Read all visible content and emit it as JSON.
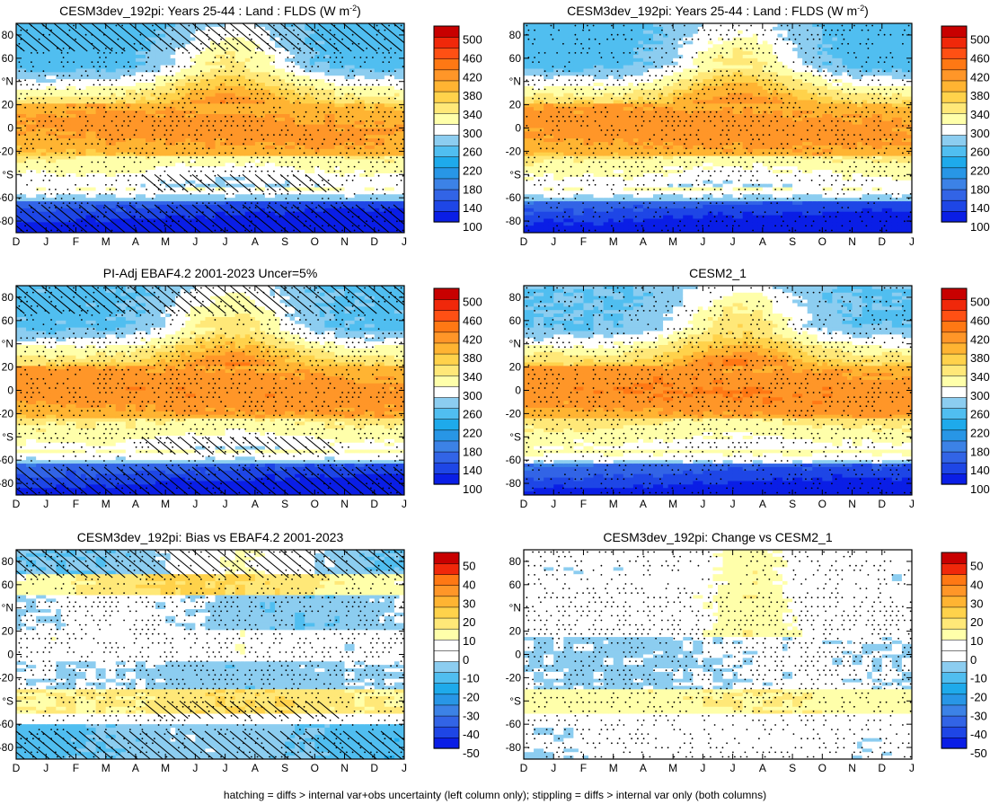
{
  "figure": {
    "footer": "hatching = diffs > internal var+obs uncertainty (left column only); stippling = diffs > internal var only (both columns)"
  },
  "palettes": {
    "main": [
      "#0a1ee6",
      "#1e46e6",
      "#3264e6",
      "#3c82e6",
      "#2896e6",
      "#1eaaeb",
      "#50bef0",
      "#8ccdf0",
      "#ffffff",
      "#ffffaa",
      "#ffe878",
      "#ffd24b",
      "#ffb432",
      "#ff9628",
      "#ff7814",
      "#ff5014",
      "#f0280a",
      "#c80000"
    ],
    "diff": [
      "#0a1ee6",
      "#1e46e6",
      "#3264e6",
      "#3c82e6",
      "#2896e6",
      "#1eaaeb",
      "#50bef0",
      "#8ccdf0",
      "#ffffff",
      "#ffffff",
      "#ffffaa",
      "#ffe878",
      "#ffd24b",
      "#ffb432",
      "#ff9628",
      "#ff7814",
      "#f0280a",
      "#c80000"
    ]
  },
  "chart_data": [
    {
      "id": "p1",
      "type": "heatmap",
      "row": 0,
      "col": 0,
      "title_main": "CESM3dev_192pi: Years 25-44 : Land : FLDS (W m",
      "title_sup": "-2",
      "title_end": ")",
      "ylim": [
        -90,
        90
      ],
      "xlabels": [
        "D",
        "J",
        "F",
        "M",
        "A",
        "M",
        "J",
        "J",
        "A",
        "S",
        "O",
        "N",
        "D",
        "J"
      ],
      "ylabels": [
        "80",
        "60",
        "°N",
        "20",
        "0",
        "-20",
        "°S",
        "-60",
        "-80"
      ],
      "palette": "main",
      "colorbar_labels": [
        "500",
        "460",
        "420",
        "380",
        "340",
        "300",
        "260",
        "220",
        "180",
        "140",
        "100"
      ],
      "field": "mean",
      "variant": 0,
      "hatching": true,
      "stippling": true
    },
    {
      "id": "p2",
      "type": "heatmap",
      "row": 0,
      "col": 1,
      "title_main": "CESM3dev_192pi: Years 25-44 : Land : FLDS (W m",
      "title_sup": "-2",
      "title_end": ")",
      "ylim": [
        -90,
        90
      ],
      "xlabels": [
        "D",
        "J",
        "F",
        "M",
        "A",
        "M",
        "J",
        "J",
        "A",
        "S",
        "O",
        "N",
        "D",
        "J"
      ],
      "ylabels": [
        "80",
        "60",
        "°N",
        "20",
        "0",
        "-20",
        "°S",
        "-60",
        "-80"
      ],
      "palette": "main",
      "colorbar_labels": [
        "500",
        "460",
        "420",
        "380",
        "340",
        "300",
        "260",
        "220",
        "180",
        "140",
        "100"
      ],
      "field": "mean",
      "variant": 1,
      "hatching": false,
      "stippling": true
    },
    {
      "id": "p3",
      "type": "heatmap",
      "row": 1,
      "col": 0,
      "title_main": "PI-Adj EBAF4.2 2001-2023 Uncer=5%",
      "title_sup": "",
      "title_end": "",
      "ylim": [
        -90,
        90
      ],
      "xlabels": [
        "D",
        "J",
        "F",
        "M",
        "A",
        "M",
        "J",
        "J",
        "A",
        "S",
        "O",
        "N",
        "D",
        "J"
      ],
      "ylabels": [
        "80",
        "60",
        "°N",
        "20",
        "0",
        "-20",
        "°S",
        "-60",
        "-80"
      ],
      "palette": "main",
      "colorbar_labels": [
        "500",
        "460",
        "420",
        "380",
        "340",
        "300",
        "260",
        "220",
        "180",
        "140",
        "100"
      ],
      "field": "mean",
      "variant": 2,
      "hatching": true,
      "stippling": true
    },
    {
      "id": "p4",
      "type": "heatmap",
      "row": 1,
      "col": 1,
      "title_main": "CESM2_1",
      "title_sup": "",
      "title_end": "",
      "ylim": [
        -90,
        90
      ],
      "xlabels": [
        "D",
        "J",
        "F",
        "M",
        "A",
        "M",
        "J",
        "J",
        "A",
        "S",
        "O",
        "N",
        "D",
        "J"
      ],
      "ylabels": [
        "80",
        "60",
        "°N",
        "20",
        "0",
        "-20",
        "°S",
        "-60",
        "-80"
      ],
      "palette": "main",
      "colorbar_labels": [
        "500",
        "460",
        "420",
        "380",
        "340",
        "300",
        "260",
        "220",
        "180",
        "140",
        "100"
      ],
      "field": "mean",
      "variant": 3,
      "hatching": false,
      "stippling": true
    },
    {
      "id": "p5",
      "type": "heatmap",
      "row": 2,
      "col": 0,
      "title_main": "CESM3dev_192pi: Bias vs EBAF4.2 2001-2023",
      "title_sup": "",
      "title_end": "",
      "ylim": [
        -90,
        90
      ],
      "xlabels": [
        "D",
        "J",
        "F",
        "M",
        "A",
        "M",
        "J",
        "J",
        "A",
        "S",
        "O",
        "N",
        "D",
        "J"
      ],
      "ylabels": [
        "80",
        "60",
        "°N",
        "20",
        "0",
        "-20",
        "°S",
        "-60",
        "-80"
      ],
      "palette": "diff",
      "colorbar_labels": [
        "50",
        "40",
        "30",
        "20",
        "10",
        "0",
        "-10",
        "-20",
        "-30",
        "-40",
        "-50"
      ],
      "field": "bias",
      "variant": 4,
      "hatching": true,
      "stippling": true
    },
    {
      "id": "p6",
      "type": "heatmap",
      "row": 2,
      "col": 1,
      "title_main": "CESM3dev_192pi: Change vs CESM2_1",
      "title_sup": "",
      "title_end": "",
      "ylim": [
        -90,
        90
      ],
      "xlabels": [
        "D",
        "J",
        "F",
        "M",
        "A",
        "M",
        "J",
        "J",
        "A",
        "S",
        "O",
        "N",
        "D",
        "J"
      ],
      "ylabels": [
        "80",
        "60",
        "°N",
        "20",
        "0",
        "-20",
        "°S",
        "-60",
        "-80"
      ],
      "palette": "diff",
      "colorbar_labels": [
        "50",
        "40",
        "30",
        "20",
        "10",
        "0",
        "-10",
        "-20",
        "-30",
        "-40",
        "-50"
      ],
      "field": "change",
      "variant": 5,
      "hatching": false,
      "stippling": true
    }
  ]
}
